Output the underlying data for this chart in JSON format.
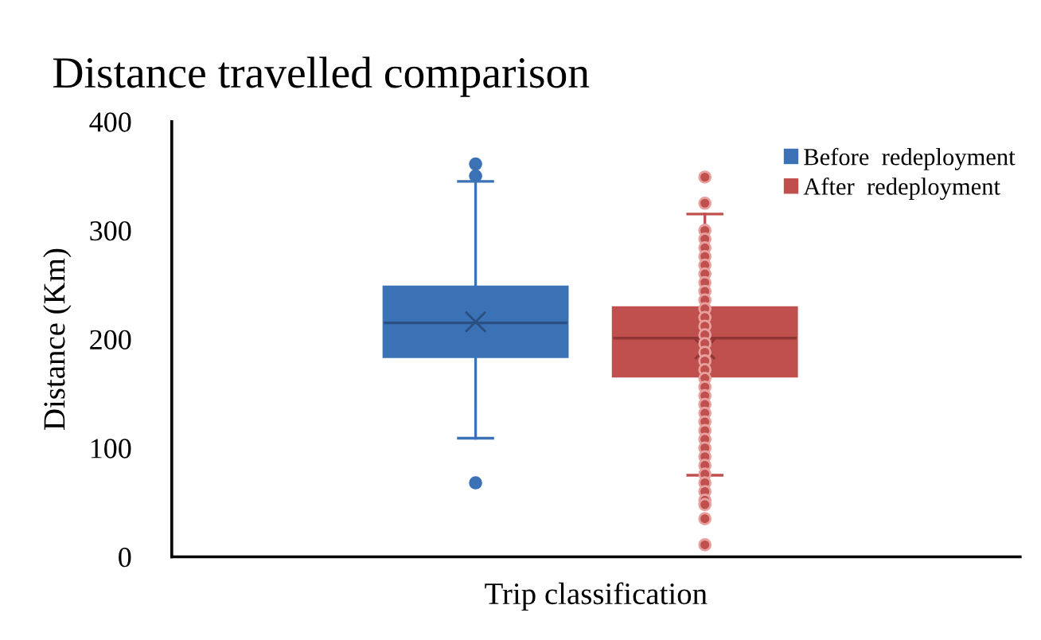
{
  "chart_data": {
    "type": "box",
    "title": "Distance travelled comparison",
    "xlabel": "Trip classification",
    "ylabel": "Distance (Km)",
    "categories": [
      null
    ],
    "ylim": [
      0,
      400
    ],
    "yticks": [
      0,
      100,
      200,
      300,
      400
    ],
    "grid": false,
    "legend": "top right",
    "series": [
      {
        "name": "Before  redeployment",
        "color": "#3a72b5",
        "boxes": [
          {
            "low": 109,
            "q1": 184,
            "median": 215,
            "q3": 248,
            "high": 345,
            "mean": 216,
            "outliers": [
              361,
              350,
              68
            ]
          }
        ]
      },
      {
        "name": "After  redeployment",
        "color": "#c0504d",
        "boxes": [
          {
            "low": 75,
            "q1": 166,
            "median": 201,
            "q3": 229,
            "high": 315,
            "mean": 191,
            "outliers": [
              349,
              325,
              300,
              292,
              284,
              276,
              268,
              260,
              252,
              244,
              236,
              228,
              220,
              212,
              204,
              196,
              188,
              180,
              172,
              164,
              156,
              148,
              140,
              132,
              124,
              116,
              108,
              100,
              92,
              84,
              76,
              68,
              60,
              52,
              48,
              35,
              11
            ]
          }
        ]
      }
    ]
  }
}
